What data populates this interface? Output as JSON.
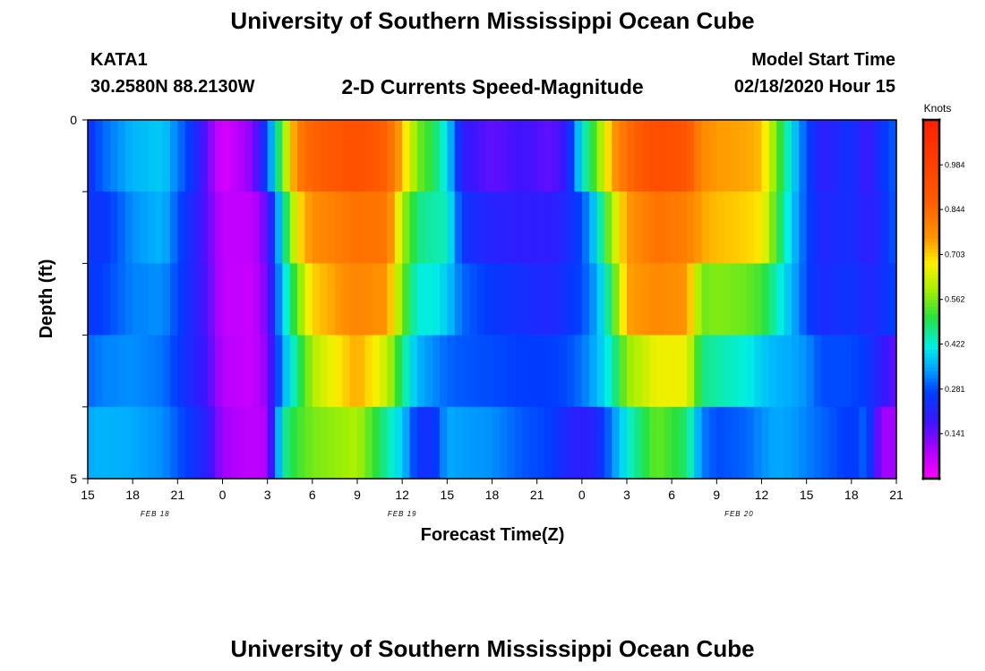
{
  "header": {
    "title": "University of Southern Mississippi Ocean Cube",
    "station_id": "KATA1",
    "coordinates": "30.2580N 88.2130W",
    "variable_title": "2-D Currents Speed-Magnitude",
    "start_label": "Model Start Time",
    "start_value": "02/18/2020 Hour 15"
  },
  "footer": {
    "title": "University of Southern Mississippi Ocean Cube"
  },
  "chart_data": {
    "type": "heatmap",
    "title": "2-D Currents Speed-Magnitude",
    "xlabel": "Forecast Time(Z)",
    "ylabel": "Depth (ft)",
    "ylim": [
      0,
      5
    ],
    "y_ticks": [
      0,
      1,
      2,
      3,
      4,
      5
    ],
    "y_tick_labels": [
      "0",
      "",
      "",
      "",
      "",
      "5"
    ],
    "x_start_hour": 15,
    "x_end_hour": 69,
    "x_tick_hours": [
      15,
      18,
      21,
      24,
      27,
      30,
      33,
      36,
      39,
      42,
      45,
      48,
      51,
      54,
      57,
      60,
      63,
      66,
      69
    ],
    "x_tick_labels": [
      "15",
      "18",
      "21",
      "0",
      "3",
      "6",
      "9",
      "12",
      "15",
      "18",
      "21",
      "0",
      "3",
      "6",
      "9",
      "12",
      "15",
      "18",
      "21"
    ],
    "date_labels": [
      {
        "text": "FEB 18",
        "hour": 19.5
      },
      {
        "text": "FEB 19",
        "hour": 36
      },
      {
        "text": "FEB 20",
        "hour": 58.5
      }
    ],
    "colorbar": {
      "label": "Knots",
      "min": 0.0,
      "max": 1.125,
      "ticks": [
        0.984,
        0.844,
        0.703,
        0.562,
        0.422,
        0.281,
        0.141
      ],
      "tick_labels": [
        "0.984",
        "0.844",
        "0.703",
        "0.562",
        "0.422",
        "0.281",
        "0.141"
      ]
    },
    "profiles": [
      {
        "hour": 15,
        "speeds": [
          0.24,
          0.26,
          0.26,
          0.3,
          0.35
        ]
      },
      {
        "hour": 16,
        "speeds": [
          0.3,
          0.25,
          0.27,
          0.32,
          0.36
        ]
      },
      {
        "hour": 18,
        "speeds": [
          0.36,
          0.33,
          0.32,
          0.33,
          0.35
        ]
      },
      {
        "hour": 20,
        "speeds": [
          0.38,
          0.36,
          0.33,
          0.31,
          0.33
        ]
      },
      {
        "hour": 22,
        "speeds": [
          0.25,
          0.22,
          0.22,
          0.22,
          0.25
        ]
      },
      {
        "hour": 23,
        "speeds": [
          0.14,
          0.15,
          0.16,
          0.17,
          0.2
        ]
      },
      {
        "hour": 24,
        "speeds": [
          0.04,
          0.07,
          0.07,
          0.08,
          0.1
        ]
      },
      {
        "hour": 26,
        "speeds": [
          0.12,
          0.07,
          0.06,
          0.06,
          0.07
        ]
      },
      {
        "hour": 27,
        "speeds": [
          0.28,
          0.16,
          0.14,
          0.12,
          0.09
        ]
      },
      {
        "hour": 28,
        "speeds": [
          0.55,
          0.42,
          0.38,
          0.34,
          0.45
        ]
      },
      {
        "hour": 29,
        "speeds": [
          0.8,
          0.68,
          0.55,
          0.47,
          0.52
        ]
      },
      {
        "hour": 30,
        "speeds": [
          0.86,
          0.77,
          0.7,
          0.6,
          0.56
        ]
      },
      {
        "hour": 33,
        "speeds": [
          0.92,
          0.83,
          0.79,
          0.74,
          0.6
        ]
      },
      {
        "hour": 35,
        "speeds": [
          0.86,
          0.82,
          0.76,
          0.62,
          0.45
        ]
      },
      {
        "hour": 36,
        "speeds": [
          0.72,
          0.6,
          0.56,
          0.47,
          0.38
        ]
      },
      {
        "hour": 37,
        "speeds": [
          0.56,
          0.47,
          0.42,
          0.36,
          0.25
        ]
      },
      {
        "hour": 38,
        "speeds": [
          0.5,
          0.45,
          0.42,
          0.33,
          0.24
        ]
      },
      {
        "hour": 39,
        "speeds": [
          0.4,
          0.44,
          0.38,
          0.3,
          0.35
        ]
      },
      {
        "hour": 40,
        "speeds": [
          0.2,
          0.25,
          0.3,
          0.29,
          0.34
        ]
      },
      {
        "hour": 42,
        "speeds": [
          0.15,
          0.21,
          0.26,
          0.28,
          0.33
        ]
      },
      {
        "hour": 44,
        "speeds": [
          0.18,
          0.2,
          0.24,
          0.27,
          0.29
        ]
      },
      {
        "hour": 46,
        "speeds": [
          0.15,
          0.2,
          0.22,
          0.27,
          0.27
        ]
      },
      {
        "hour": 47,
        "speeds": [
          0.2,
          0.23,
          0.25,
          0.28,
          0.22
        ]
      },
      {
        "hour": 48,
        "speeds": [
          0.42,
          0.28,
          0.28,
          0.31,
          0.2
        ]
      },
      {
        "hour": 49,
        "speeds": [
          0.55,
          0.4,
          0.35,
          0.36,
          0.22
        ]
      },
      {
        "hour": 50,
        "speeds": [
          0.74,
          0.6,
          0.5,
          0.44,
          0.32
        ]
      },
      {
        "hour": 51,
        "speeds": [
          0.84,
          0.75,
          0.74,
          0.58,
          0.42
        ]
      },
      {
        "hour": 53,
        "speeds": [
          0.93,
          0.83,
          0.78,
          0.66,
          0.55
        ]
      },
      {
        "hour": 55,
        "speeds": [
          0.9,
          0.8,
          0.76,
          0.66,
          0.48
        ]
      },
      {
        "hour": 56,
        "speeds": [
          0.78,
          0.74,
          0.55,
          0.47,
          0.32
        ]
      },
      {
        "hour": 57,
        "speeds": [
          0.75,
          0.72,
          0.57,
          0.45,
          0.28
        ]
      },
      {
        "hour": 59,
        "speeds": [
          0.74,
          0.7,
          0.55,
          0.42,
          0.3
        ]
      },
      {
        "hour": 60,
        "speeds": [
          0.72,
          0.68,
          0.52,
          0.38,
          0.33
        ]
      },
      {
        "hour": 61,
        "speeds": [
          0.55,
          0.52,
          0.44,
          0.36,
          0.35
        ]
      },
      {
        "hour": 62,
        "speeds": [
          0.4,
          0.38,
          0.36,
          0.35,
          0.34
        ]
      },
      {
        "hour": 63,
        "speeds": [
          0.28,
          0.28,
          0.28,
          0.33,
          0.32
        ]
      },
      {
        "hour": 64,
        "speeds": [
          0.2,
          0.22,
          0.23,
          0.28,
          0.3
        ]
      },
      {
        "hour": 66,
        "speeds": [
          0.25,
          0.24,
          0.25,
          0.28,
          0.26
        ]
      },
      {
        "hour": 67,
        "speeds": [
          0.18,
          0.2,
          0.22,
          0.26,
          0.3
        ]
      },
      {
        "hour": 68,
        "speeds": [
          0.25,
          0.23,
          0.24,
          0.2,
          0.1
        ]
      },
      {
        "hour": 69,
        "speeds": [
          0.3,
          0.3,
          0.28,
          0.15,
          0.1
        ]
      }
    ]
  }
}
